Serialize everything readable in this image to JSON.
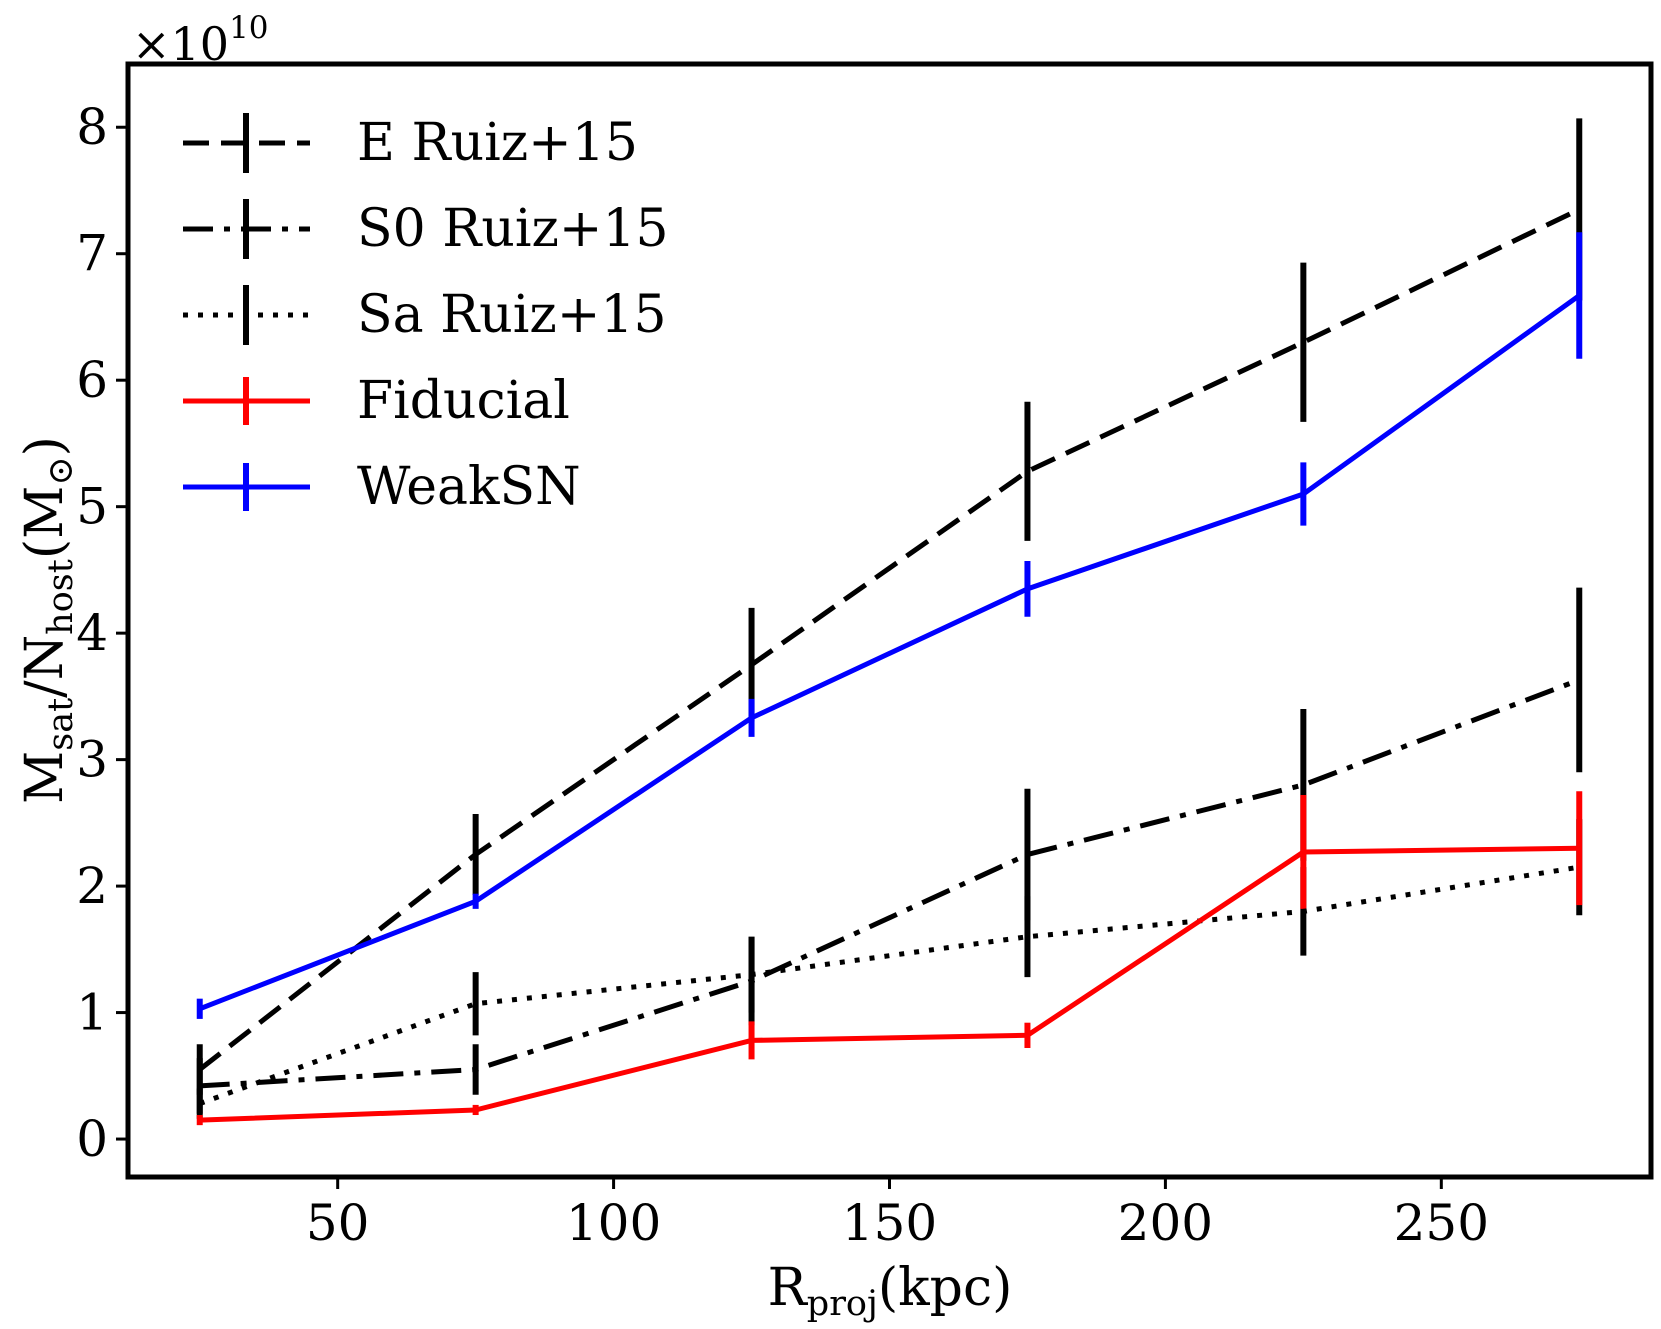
{
  "chart_data": {
    "type": "line",
    "title": "",
    "multiplier_base": "×10",
    "multiplier_exp": "10",
    "xlabel": {
      "main": "R",
      "sub": "proj",
      "tail": "(kpc)"
    },
    "ylabel": {
      "m": "M",
      "sat": "sat",
      "slash": "/N",
      "host": "host",
      "unit_open": "(M",
      "sun": "⊙",
      "unit_close": ")"
    },
    "xlim": [
      12,
      288
    ],
    "ylim": [
      -0.3,
      8.5
    ],
    "xticks": [
      50,
      100,
      150,
      200,
      250
    ],
    "xtick_labels": [
      "50",
      "100",
      "150",
      "200",
      "250"
    ],
    "yticks": [
      0,
      1,
      2,
      3,
      4,
      5,
      6,
      7,
      8
    ],
    "ytick_labels": [
      "0",
      "1",
      "2",
      "3",
      "4",
      "5",
      "6",
      "7",
      "8"
    ],
    "legend_position": "top-left",
    "series": [
      {
        "name": "E Ruiz+15",
        "color": "#000000",
        "style": "dashed",
        "x": [
          25,
          75,
          125,
          175,
          225,
          275
        ],
        "y": [
          0.55,
          2.25,
          3.75,
          5.28,
          6.3,
          7.35
        ],
        "err": [
          0.2,
          0.32,
          0.45,
          0.55,
          0.63,
          0.72
        ]
      },
      {
        "name": "S0 Ruiz+15",
        "color": "#000000",
        "style": "dashdot",
        "x": [
          25,
          75,
          125,
          175,
          225,
          275
        ],
        "y": [
          0.42,
          0.55,
          1.25,
          2.25,
          2.8,
          3.63
        ],
        "err": [
          0.22,
          0.2,
          0.35,
          0.52,
          0.6,
          0.73
        ]
      },
      {
        "name": "Sa Ruiz+15",
        "color": "#000000",
        "style": "dotted",
        "x": [
          25,
          75,
          125,
          175,
          225,
          275
        ],
        "y": [
          0.28,
          1.07,
          1.3,
          1.6,
          1.8,
          2.15
        ],
        "err": [
          0.12,
          0.25,
          0.3,
          0.32,
          0.35,
          0.38
        ]
      },
      {
        "name": "Fiducial",
        "color": "#ff0000",
        "style": "solid",
        "x": [
          25,
          75,
          125,
          175,
          225,
          275
        ],
        "y": [
          0.15,
          0.23,
          0.78,
          0.82,
          2.27,
          2.3
        ],
        "err": [
          0.04,
          0.04,
          0.15,
          0.1,
          0.45,
          0.45
        ]
      },
      {
        "name": "WeakSN",
        "color": "#0000ff",
        "style": "solid",
        "x": [
          25,
          75,
          125,
          175,
          225,
          275
        ],
        "y": [
          1.03,
          1.88,
          3.33,
          4.35,
          5.1,
          6.67
        ],
        "err": [
          0.08,
          0.06,
          0.15,
          0.22,
          0.25,
          0.5
        ]
      }
    ]
  }
}
